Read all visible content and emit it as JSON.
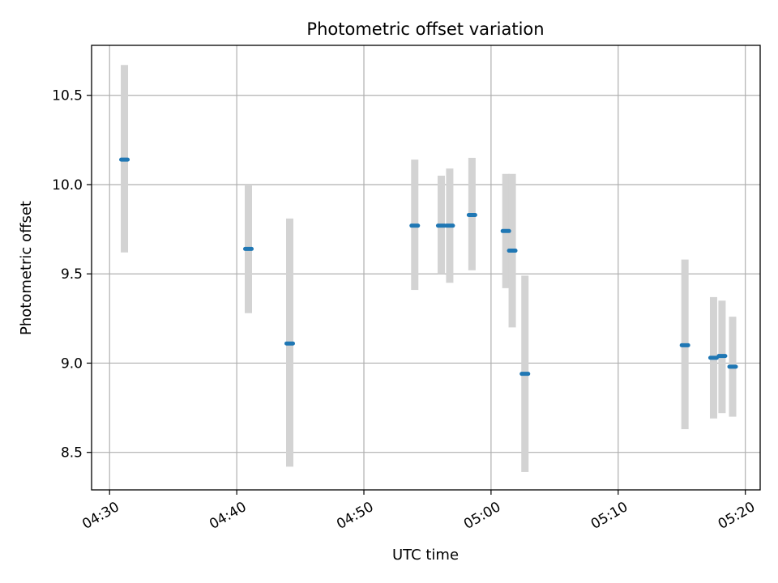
{
  "chart_data": {
    "type": "scatter",
    "title": "Photometric offset variation",
    "xlabel": "UTC time",
    "ylabel": "Photometric offset",
    "x_axis_kind": "time",
    "xlim": [
      "04:28:35",
      "05:21:10"
    ],
    "ylim": [
      8.29,
      10.78
    ],
    "x_ticks": [
      "04:30",
      "04:40",
      "04:50",
      "05:00",
      "05:10",
      "05:20"
    ],
    "y_ticks": [
      8.5,
      9.0,
      9.5,
      10.0,
      10.5
    ],
    "y_tick_labels": [
      "8.5",
      "9.0",
      "9.5",
      "10.0",
      "10.5"
    ],
    "grid": true,
    "error_bar_color": "#d3d3d3",
    "marker_color": "#1f77b4",
    "series": [
      {
        "points": [
          {
            "x": "04:31:10",
            "y": 10.14,
            "ymin": 9.62,
            "ymax": 10.67
          },
          {
            "x": "04:40:55",
            "y": 9.64,
            "ymin": 9.28,
            "ymax": 10.0
          },
          {
            "x": "04:44:10",
            "y": 9.11,
            "ymin": 8.42,
            "ymax": 9.81
          },
          {
            "x": "04:54:00",
            "y": 9.77,
            "ymin": 9.41,
            "ymax": 10.14
          },
          {
            "x": "04:56:05",
            "y": 9.77,
            "ymin": 9.5,
            "ymax": 10.05
          },
          {
            "x": "04:56:45",
            "y": 9.77,
            "ymin": 9.45,
            "ymax": 10.09
          },
          {
            "x": "04:58:30",
            "y": 9.83,
            "ymin": 9.52,
            "ymax": 10.15
          },
          {
            "x": "05:01:10",
            "y": 9.74,
            "ymin": 9.42,
            "ymax": 10.06
          },
          {
            "x": "05:01:40",
            "y": 9.63,
            "ymin": 9.2,
            "ymax": 10.06
          },
          {
            "x": "05:02:40",
            "y": 8.94,
            "ymin": 8.39,
            "ymax": 9.49
          },
          {
            "x": "05:15:15",
            "y": 9.1,
            "ymin": 8.63,
            "ymax": 9.58
          },
          {
            "x": "05:17:30",
            "y": 9.03,
            "ymin": 8.69,
            "ymax": 9.37
          },
          {
            "x": "05:18:10",
            "y": 9.04,
            "ymin": 8.72,
            "ymax": 9.35
          },
          {
            "x": "05:19:00",
            "y": 8.98,
            "ymin": 8.7,
            "ymax": 9.26
          }
        ]
      }
    ]
  }
}
